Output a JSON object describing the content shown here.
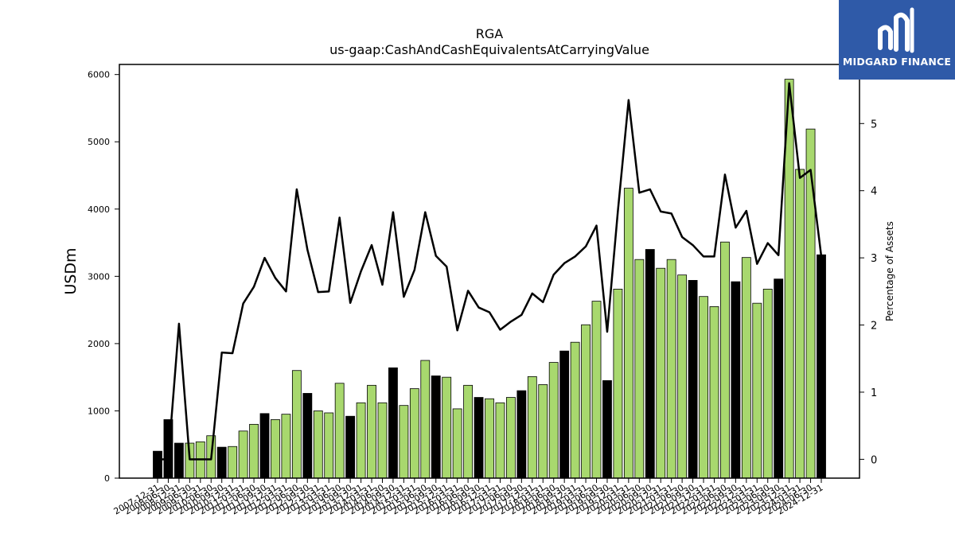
{
  "chart_data": {
    "type": "bar",
    "title": "RGA",
    "subtitle": "us-gaap:CashAndCashEquivalentsAtCarryingValue",
    "ylabel": "USDm",
    "y2label": "Percentage of Assets",
    "ylim": [
      0,
      6150
    ],
    "y2lim": [
      -0.28,
      5.88
    ],
    "yticks": [
      0,
      1000,
      2000,
      3000,
      4000,
      5000,
      6000
    ],
    "y2ticks": [
      0,
      1,
      2,
      3,
      4,
      5
    ],
    "categories": [
      "2007-12-31",
      "2008-06-30",
      "2008-12-31",
      "2009-06-30",
      "2009-12-31",
      "2010-06-30",
      "2010-09-30",
      "2010-12-31",
      "2011-03-31",
      "2011-06-30",
      "2011-09-30",
      "2011-12-31",
      "2012-03-31",
      "2012-06-30",
      "2012-09-30",
      "2012-12-31",
      "2013-03-31",
      "2013-06-30",
      "2013-09-30",
      "2013-12-31",
      "2014-03-31",
      "2014-06-30",
      "2014-09-30",
      "2014-12-31",
      "2015-03-31",
      "2015-06-30",
      "2015-09-30",
      "2015-12-31",
      "2016-03-31",
      "2016-06-30",
      "2016-09-30",
      "2016-12-31",
      "2017-03-31",
      "2017-06-30",
      "2017-09-30",
      "2017-12-31",
      "2018-03-31",
      "2018-06-30",
      "2018-09-30",
      "2018-12-31",
      "2019-03-31",
      "2019-06-30",
      "2019-09-30",
      "2019-12-31",
      "2020-03-31",
      "2020-06-30",
      "2020-09-30",
      "2020-12-31",
      "2021-03-31",
      "2021-06-30",
      "2021-09-30",
      "2021-12-31",
      "2022-03-31",
      "2022-06-30",
      "2022-09-30",
      "2022-12-31",
      "2023-03-31",
      "2023-06-30",
      "2023-09-30",
      "2023-12-31",
      "2024-03-31",
      "2024-06-30",
      "2024-12-31"
    ],
    "xtick_labels": [
      "2007-12-31",
      "2008-06-30",
      "2008-12-31",
      "2009-06-30",
      "2009-12-31",
      "2010-06-30",
      "2010-09-30",
      "2010-12-31",
      "2011-03-31",
      "2011-06-30",
      "2011-09-30",
      "2011-12-31",
      "2012-03-31",
      "2012-06-30",
      "2012-09-30",
      "2012-12-31",
      "2013-03-31",
      "2013-06-30",
      "2013-09-30",
      "2013-12-31",
      "2014-03-31",
      "2014-06-30",
      "2014-09-30",
      "2014-12-31",
      "2015-03-31",
      "2015-06-30",
      "2015-09-30",
      "2015-12-31",
      "2016-03-31",
      "2016-06-30",
      "2016-09-30",
      "2016-12-31",
      "2017-03-31",
      "2017-06-30",
      "2017-09-30",
      "2017-12-31",
      "2018-03-31",
      "2018-06-30",
      "2018-09-30",
      "2018-12-31",
      "2019-03-31",
      "2019-06-30",
      "2019-09-30",
      "2019-12-31",
      "2020-03-31",
      "2020-06-30",
      "2020-09-30",
      "2020-12-31",
      "2021-03-31",
      "2021-06-30",
      "2021-09-30",
      "2021-12-31",
      "2022-03-31",
      "2022-06-30",
      "2022-09-30",
      "2022-12-31",
      "2023-03-31",
      "2023-06-30",
      "2023-09-30",
      "2023-12-31",
      "2024-03-31",
      "2024-06-30",
      "2024-12-31"
    ],
    "bar_values": [
      400,
      870,
      520,
      520,
      540,
      630,
      460,
      470,
      700,
      800,
      960,
      870,
      950,
      1600,
      1260,
      1000,
      970,
      1410,
      920,
      1120,
      1380,
      1120,
      1640,
      1080,
      1330,
      1750,
      1520,
      1500,
      1030,
      1380,
      1200,
      1180,
      1120,
      1200,
      1300,
      1510,
      1390,
      1720,
      1890,
      2020,
      2280,
      2630,
      1450,
      2810,
      4310,
      3250,
      3400,
      3120,
      3250,
      3020,
      2940,
      2700,
      2550,
      3510,
      2920,
      3280,
      2600,
      2810,
      2960,
      5930,
      4590,
      5190,
      3320
    ],
    "bar_colors": [
      "#000000",
      "#000000",
      "#000000",
      "#a8d86e",
      "#a8d86e",
      "#a8d86e",
      "#000000",
      "#a8d86e",
      "#a8d86e",
      "#a8d86e",
      "#000000",
      "#a8d86e",
      "#a8d86e",
      "#a8d86e",
      "#000000",
      "#a8d86e",
      "#a8d86e",
      "#a8d86e",
      "#000000",
      "#a8d86e",
      "#a8d86e",
      "#a8d86e",
      "#000000",
      "#a8d86e",
      "#a8d86e",
      "#a8d86e",
      "#000000",
      "#a8d86e",
      "#a8d86e",
      "#a8d86e",
      "#000000",
      "#a8d86e",
      "#a8d86e",
      "#a8d86e",
      "#000000",
      "#a8d86e",
      "#a8d86e",
      "#a8d86e",
      "#000000",
      "#a8d86e",
      "#a8d86e",
      "#a8d86e",
      "#000000",
      "#a8d86e",
      "#a8d86e",
      "#a8d86e",
      "#000000",
      "#a8d86e",
      "#a8d86e",
      "#a8d86e",
      "#000000",
      "#a8d86e",
      "#a8d86e",
      "#a8d86e",
      "#000000",
      "#a8d86e",
      "#a8d86e",
      "#a8d86e",
      "#000000",
      "#a8d86e",
      "#a8d86e",
      "#a8d86e",
      "#000000"
    ],
    "line_values": [
      0.0,
      0.0,
      2.02,
      0.0,
      0.0,
      0.0,
      1.59,
      1.58,
      2.32,
      2.57,
      3.0,
      2.7,
      2.5,
      4.02,
      3.12,
      2.49,
      2.5,
      3.6,
      2.33,
      2.8,
      3.19,
      2.6,
      3.68,
      2.42,
      2.82,
      3.68,
      3.03,
      2.87,
      1.92,
      2.51,
      2.26,
      2.19,
      1.93,
      2.05,
      2.15,
      2.47,
      2.34,
      2.75,
      2.92,
      3.02,
      3.17,
      3.48,
      1.9,
      3.7,
      5.35,
      3.97,
      4.02,
      3.69,
      3.66,
      3.31,
      3.19,
      3.02,
      3.02,
      4.24,
      3.45,
      3.7,
      2.91,
      3.22,
      3.04,
      5.6,
      4.19,
      4.31,
      3.02
    ],
    "grid": false,
    "colors": {
      "accent_bar": "#a8d86e",
      "dark_bar": "#000000",
      "line": "#000000"
    }
  },
  "logo": {
    "text": "MIDGARD FINANCE",
    "background": "#2f5aa8"
  }
}
